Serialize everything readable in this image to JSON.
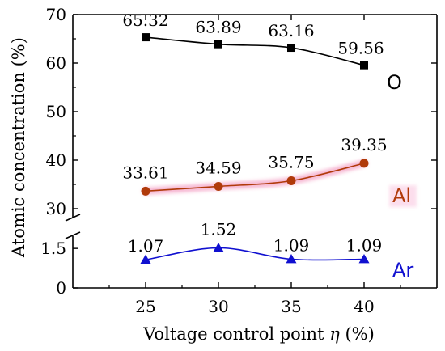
{
  "chart_data": {
    "type": "line",
    "title": "",
    "xlabel_prefix": "Voltage control point ",
    "xlabel_symbol": "η",
    "xlabel_suffix": " (%)",
    "ylabel": "Atomic concentration (%)",
    "x": [
      25,
      30,
      35,
      40
    ],
    "x_ticks": [
      "25",
      "30",
      "35",
      "40"
    ],
    "xlim": [
      20,
      45
    ],
    "broken_axis": true,
    "y_upper": {
      "ylim": [
        30,
        70
      ],
      "ticks": [
        "30",
        "40",
        "50",
        "60",
        "70"
      ]
    },
    "y_lower": {
      "ylim": [
        0,
        1.75
      ],
      "ticks": [
        "0",
        "1.5"
      ]
    },
    "grid": false,
    "series": [
      {
        "name": "O",
        "panel": "upper",
        "marker": "square",
        "color": "#000000",
        "values": [
          65.32,
          63.89,
          63.16,
          59.56
        ],
        "labels": [
          "65.32",
          "63.89",
          "63.16",
          "59.56"
        ]
      },
      {
        "name": "Al",
        "panel": "upper",
        "marker": "circle",
        "color": "#b03a0a",
        "values": [
          33.61,
          34.59,
          35.75,
          39.35
        ],
        "labels": [
          "33.61",
          "34.59",
          "35.75",
          "39.35"
        ]
      },
      {
        "name": "Ar",
        "panel": "lower",
        "marker": "triangle",
        "color": "#1010d0",
        "values": [
          1.07,
          1.52,
          1.09,
          1.09
        ],
        "labels": [
          "1.07",
          "1.52",
          "1.09",
          "1.09"
        ]
      }
    ]
  }
}
